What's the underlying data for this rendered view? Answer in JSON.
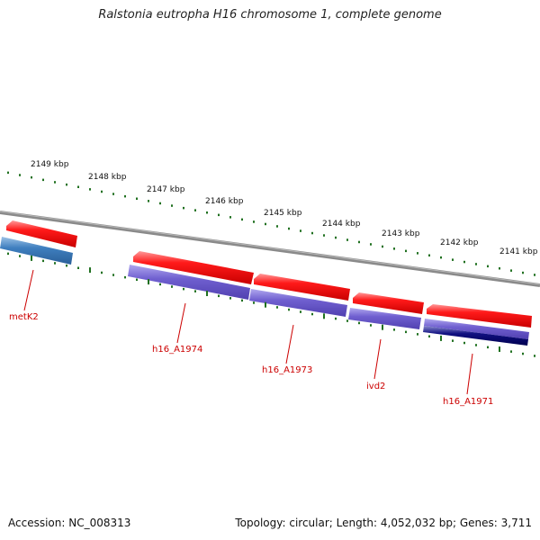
{
  "title": "Ralstonia eutropha H16 chromosome 1, complete genome",
  "footer": {
    "accession": "Accession: NC_008313",
    "summary": "Topology: circular; Length: 4,052,032 bp; Genes: 3,711"
  },
  "colors": {
    "forward_gene": "#ff1a1a",
    "reverse_gene": "#7060d0",
    "metK2": "#3f7fbf",
    "h16_A1971": "#101080",
    "tick": "#207020",
    "backbone": "#888888",
    "label": "#cc0000"
  },
  "ruler_labels": [
    "2149 kbp",
    "2148 kbp",
    "2147 kbp",
    "2146 kbp",
    "2145 kbp",
    "2144 kbp",
    "2143 kbp",
    "2142 kbp",
    "2141 kbp"
  ],
  "gene_labels": [
    "metK2",
    "h16_A1974",
    "h16_A1973",
    "ivd2",
    "h16_A1971"
  ]
}
